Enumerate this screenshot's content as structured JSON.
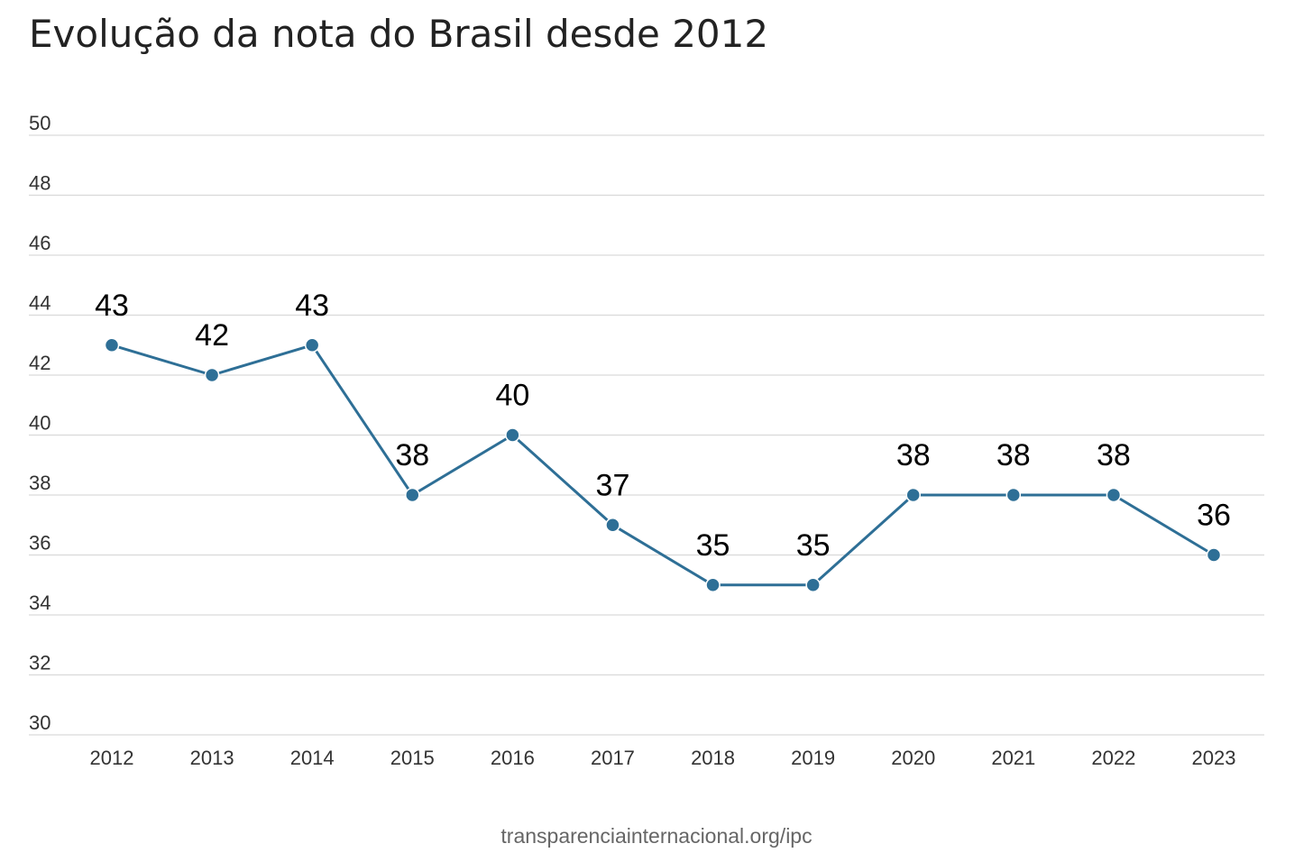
{
  "title": "Evolução da nota do Brasil desde 2012",
  "source": "transparenciainternacional.org/ipc",
  "colors": {
    "line": "#2e6f96",
    "marker": "#2e6f96",
    "marker_stroke": "#ffffff",
    "grid": "#d9d9d9",
    "axis_text": "#333333",
    "label_text": "#000000"
  },
  "chart_data": {
    "type": "line",
    "title": "Evolução da nota do Brasil desde 2012",
    "xlabel": "",
    "ylabel": "",
    "categories": [
      "2012",
      "2013",
      "2014",
      "2015",
      "2016",
      "2017",
      "2018",
      "2019",
      "2020",
      "2021",
      "2022",
      "2023"
    ],
    "series": [
      {
        "values": [
          43,
          42,
          43,
          38,
          40,
          37,
          35,
          35,
          38,
          38,
          38,
          36
        ]
      }
    ],
    "ylim": [
      30,
      50
    ],
    "yticks": [
      30,
      32,
      34,
      36,
      38,
      40,
      42,
      44,
      46,
      48,
      50
    ],
    "grid": true,
    "data_labels": true,
    "legend": "none"
  }
}
